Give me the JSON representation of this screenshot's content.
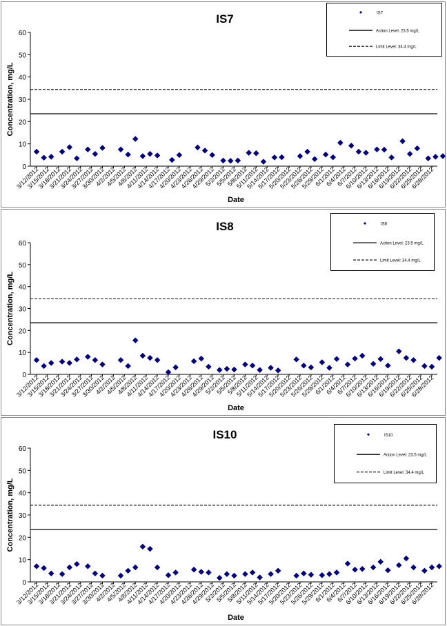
{
  "chart_data": [
    {
      "type": "scatter",
      "title": "IS7",
      "xlabel": "Date",
      "ylabel": "Concentration, mg/L",
      "ylim": [
        0,
        60
      ],
      "yticks": [
        "0",
        "10",
        "20",
        "30",
        "40",
        "50",
        "60"
      ],
      "x_tick_labels": [
        "3/12/2012",
        "3/15/2012",
        "3/18/2012",
        "3/21/2012",
        "3/24/2012",
        "3/27/2012",
        "3/30/2012",
        "4/2/2012",
        "4/5/2012",
        "4/8/2012",
        "4/11/2012",
        "4/14/2012",
        "4/17/2012",
        "4/20/2012",
        "4/23/2012",
        "4/26/2012",
        "4/29/2012",
        "5/2/2012",
        "5/5/2012",
        "5/8/2012",
        "5/11/2012",
        "5/14/2012",
        "5/17/2012",
        "5/20/2012",
        "5/23/2012",
        "5/26/2012",
        "5/29/2012",
        "6/1/2012",
        "6/4/2012",
        "6/7/2012",
        "6/10/2012",
        "6/13/2012",
        "6/16/2012",
        "6/19/2012",
        "6/22/2012",
        "6/25/2012",
        "6/28/2012"
      ],
      "legend": {
        "position": "top-right",
        "entries": [
          "IS7",
          "Action Level: 23.5 mg/L",
          "Limit Level: 34.4 mg/L"
        ]
      },
      "reference_lines": [
        {
          "name": "Action Level: 23.5 mg/L",
          "value": 23.5,
          "style": "solid"
        },
        {
          "name": "Limit Level: 34.4 mg/L",
          "value": 34.4,
          "style": "dashed"
        }
      ],
      "series": [
        {
          "name": "IS7",
          "color": "#000080",
          "marker": "diamond",
          "x": [
            "3/12/2012",
            "3/14/2012",
            "3/16/2012",
            "3/19/2012",
            "3/21/2012",
            "3/23/2012",
            "3/26/2012",
            "3/28/2012",
            "3/30/2012",
            "4/4/2012",
            "4/6/2012",
            "4/8/2012",
            "4/10/2012",
            "4/12/2012",
            "4/14/2012",
            "4/18/2012",
            "4/20/2012",
            "4/25/2012",
            "4/27/2012",
            "4/29/2012",
            "5/2/2012",
            "5/4/2012",
            "5/6/2012",
            "5/9/2012",
            "5/11/2012",
            "5/13/2012",
            "5/16/2012",
            "5/18/2012",
            "5/23/2012",
            "5/25/2012",
            "5/27/2012",
            "5/30/2012",
            "6/1/2012",
            "6/3/2012",
            "6/6/2012",
            "6/8/2012",
            "6/10/2012",
            "6/13/2012",
            "6/15/2012",
            "6/17/2012",
            "6/20/2012",
            "6/22/2012",
            "6/24/2012",
            "6/27/2012",
            "6/29/2012",
            "7/1/2012"
          ],
          "y": [
            6.5,
            3.8,
            4.2,
            6.5,
            8.5,
            3.5,
            7.5,
            5.5,
            8.2,
            7.5,
            5.2,
            12.2,
            4.5,
            5.5,
            4.8,
            2.8,
            5.0,
            8.4,
            7.0,
            5.0,
            2.5,
            2.4,
            2.5,
            6.0,
            5.8,
            2.0,
            3.9,
            4.0,
            4.5,
            6.5,
            3.2,
            5.2,
            4.0,
            10.5,
            9.2,
            6.5,
            6.0,
            7.5,
            7.4,
            3.9,
            11.2,
            5.5,
            8.0,
            3.5,
            4.2,
            4.5
          ]
        }
      ]
    },
    {
      "type": "scatter",
      "title": "IS8",
      "xlabel": "Date",
      "ylabel": "Concentration, mg/L",
      "ylim": [
        0,
        60
      ],
      "yticks": [
        "0",
        "10",
        "20",
        "30",
        "40",
        "50",
        "60"
      ],
      "x_tick_labels": [
        "3/12/2012",
        "3/15/2012",
        "3/18/2012",
        "3/21/2012",
        "3/24/2012",
        "3/27/2012",
        "3/30/2012",
        "4/2/2012",
        "4/5/2012",
        "4/8/2012",
        "4/11/2012",
        "4/14/2012",
        "4/17/2012",
        "4/20/2012",
        "4/23/2012",
        "4/26/2012",
        "4/29/2012",
        "5/2/2012",
        "5/5/2012",
        "5/8/2012",
        "5/11/2012",
        "5/14/2012",
        "5/17/2012",
        "5/20/2012",
        "5/23/2012",
        "5/26/2012",
        "5/29/2012",
        "6/1/2012",
        "6/4/2012",
        "6/7/2012",
        "6/10/2012",
        "6/13/2012",
        "6/16/2012",
        "6/19/2012",
        "6/22/2012",
        "6/25/2012",
        "6/28/2012"
      ],
      "legend": {
        "position": "top-right",
        "entries": [
          "IS8",
          "Action Level: 23.5 mg/L",
          "Limit Level: 34.4 mg/L"
        ]
      },
      "reference_lines": [
        {
          "name": "Action Level: 23.5 mg/L",
          "value": 23.5,
          "style": "solid"
        },
        {
          "name": "Limit Level: 34.4 mg/L",
          "value": 34.4,
          "style": "dashed"
        }
      ],
      "series": [
        {
          "name": "IS8",
          "color": "#000080",
          "marker": "diamond",
          "x": [
            "3/12/2012",
            "3/14/2012",
            "3/16/2012",
            "3/19/2012",
            "3/21/2012",
            "3/23/2012",
            "3/26/2012",
            "3/28/2012",
            "3/30/2012",
            "4/4/2012",
            "4/6/2012",
            "4/8/2012",
            "4/10/2012",
            "4/12/2012",
            "4/14/2012",
            "4/17/2012",
            "4/19/2012",
            "4/24/2012",
            "4/26/2012",
            "4/28/2012",
            "5/1/2012",
            "5/3/2012",
            "5/5/2012",
            "5/8/2012",
            "5/10/2012",
            "5/12/2012",
            "5/15/2012",
            "5/17/2012",
            "5/22/2012",
            "5/24/2012",
            "5/26/2012",
            "5/29/2012",
            "5/31/2012",
            "6/2/2012",
            "6/5/2012",
            "6/7/2012",
            "6/9/2012",
            "6/12/2012",
            "6/14/2012",
            "6/16/2012",
            "6/19/2012",
            "6/21/2012",
            "6/23/2012",
            "6/26/2012",
            "6/28/2012",
            "6/30/2012"
          ],
          "y": [
            6.5,
            3.8,
            5.2,
            5.8,
            5.2,
            6.8,
            8.0,
            6.5,
            4.5,
            6.5,
            3.8,
            15.5,
            8.5,
            7.5,
            6.5,
            1.0,
            3.2,
            6.0,
            7.2,
            3.5,
            2.0,
            2.5,
            2.2,
            4.5,
            4.0,
            2.0,
            3.0,
            1.8,
            6.8,
            4.0,
            3.2,
            5.5,
            3.0,
            7.0,
            4.5,
            7.2,
            8.5,
            4.8,
            7.0,
            4.0,
            10.5,
            7.5,
            6.5,
            3.8,
            3.5,
            7.5
          ]
        }
      ]
    },
    {
      "type": "scatter",
      "title": "IS10",
      "xlabel": "Date",
      "ylabel": "Concentration, mg/L",
      "ylim": [
        0,
        60
      ],
      "yticks": [
        "0",
        "10",
        "20",
        "30",
        "40",
        "50",
        "60"
      ],
      "x_tick_labels": [
        "3/12/2012",
        "3/15/2012",
        "3/18/2012",
        "3/21/2012",
        "3/24/2012",
        "3/27/2012",
        "3/30/2012",
        "4/2/2012",
        "4/5/2012",
        "4/8/2012",
        "4/11/2012",
        "4/14/2012",
        "4/17/2012",
        "4/20/2012",
        "4/23/2012",
        "4/26/2012",
        "4/29/2012",
        "5/2/2012",
        "5/5/2012",
        "5/8/2012",
        "5/11/2012",
        "5/14/2012",
        "5/17/2012",
        "5/20/2012",
        "5/23/2012",
        "5/26/2012",
        "5/29/2012",
        "6/1/2012",
        "6/4/2012",
        "6/7/2012",
        "6/10/2012",
        "6/13/2012",
        "6/16/2012",
        "6/19/2012",
        "6/22/2012",
        "6/25/2012",
        "6/28/2012"
      ],
      "legend": {
        "position": "top-right",
        "entries": [
          "IS10",
          "Action Level: 23.5 mg/L",
          "Limit Level: 34.4 mg/L"
        ]
      },
      "reference_lines": [
        {
          "name": "Action Level: 23.5 mg/L",
          "value": 23.5,
          "style": "solid"
        },
        {
          "name": "Limit Level: 34.4 mg/L",
          "value": 34.4,
          "style": "dashed"
        }
      ],
      "series": [
        {
          "name": "IS10",
          "color": "#000080",
          "marker": "diamond",
          "x": [
            "3/12/2012",
            "3/14/2012",
            "3/16/2012",
            "3/19/2012",
            "3/21/2012",
            "3/23/2012",
            "3/26/2012",
            "3/28/2012",
            "3/30/2012",
            "4/4/2012",
            "4/6/2012",
            "4/8/2012",
            "4/10/2012",
            "4/12/2012",
            "4/14/2012",
            "4/17/2012",
            "4/19/2012",
            "4/24/2012",
            "4/26/2012",
            "4/28/2012",
            "5/1/2012",
            "5/3/2012",
            "5/5/2012",
            "5/8/2012",
            "5/10/2012",
            "5/12/2012",
            "5/15/2012",
            "5/17/2012",
            "5/22/2012",
            "5/24/2012",
            "5/26/2012",
            "5/29/2012",
            "5/31/2012",
            "6/2/2012",
            "6/5/2012",
            "6/7/2012",
            "6/9/2012",
            "6/12/2012",
            "6/14/2012",
            "6/16/2012",
            "6/19/2012",
            "6/21/2012",
            "6/23/2012",
            "6/26/2012",
            "6/28/2012",
            "6/30/2012"
          ],
          "y": [
            7.0,
            6.2,
            3.8,
            3.5,
            6.5,
            8.0,
            7.0,
            3.8,
            2.8,
            2.8,
            5.0,
            6.5,
            15.8,
            14.8,
            6.5,
            3.0,
            4.2,
            5.5,
            4.5,
            4.2,
            1.8,
            3.5,
            2.8,
            3.5,
            4.2,
            2.0,
            3.5,
            5.0,
            2.8,
            3.8,
            3.2,
            3.0,
            3.5,
            4.2,
            8.2,
            5.5,
            5.8,
            6.5,
            9.0,
            5.2,
            7.5,
            10.5,
            6.5,
            5.0,
            6.5,
            7.0
          ]
        }
      ]
    }
  ]
}
